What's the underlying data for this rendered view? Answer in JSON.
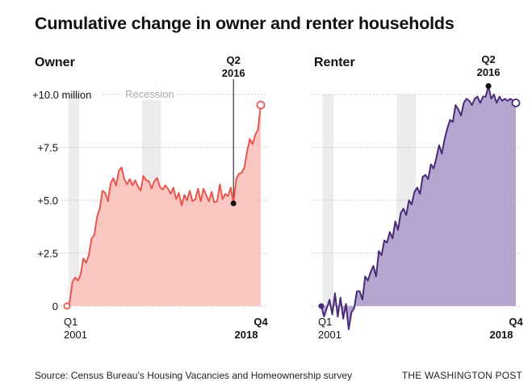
{
  "title": "Cumulative change in owner and renter households",
  "chart_data": [
    {
      "type": "area",
      "title": "Owner",
      "x_unit": "quarter",
      "x_start": "Q1 2001",
      "x_end": "Q4 2018",
      "x_tick_labels": [
        {
          "quarter": "Q1",
          "year": "2001"
        },
        {
          "quarter": "Q4",
          "year": "2018"
        }
      ],
      "y_ticks": [
        {
          "value": 0,
          "label": "0"
        },
        {
          "value": 2.5,
          "label": "+2.5"
        },
        {
          "value": 5,
          "label": "+5.0"
        },
        {
          "value": 7.5,
          "label": "+7.5"
        },
        {
          "value": 10,
          "label": "+10.0 million"
        }
      ],
      "ylim": [
        0,
        10
      ],
      "grid": true,
      "color": "#e8574e",
      "fill": "#f9c6c1",
      "recession_label": "Recession",
      "recessions": [
        [
          1,
          4
        ],
        [
          28,
          34
        ]
      ],
      "annotation": {
        "quarter": "Q2",
        "year": "2016",
        "index": 61,
        "value": 4.85
      },
      "end_value": 9.5,
      "values": [
        0.0,
        0.2,
        1.15,
        1.35,
        1.2,
        1.5,
        2.25,
        2.05,
        2.4,
        3.2,
        3.35,
        4.2,
        4.6,
        5.45,
        5.35,
        4.95,
        5.8,
        6.05,
        5.7,
        6.4,
        6.55,
        6.0,
        5.75,
        6.0,
        5.7,
        5.95,
        5.65,
        5.45,
        6.15,
        5.95,
        5.9,
        5.55,
        5.9,
        6.05,
        5.65,
        5.5,
        5.7,
        5.55,
        5.3,
        5.6,
        5.05,
        5.35,
        4.75,
        5.25,
        5.0,
        5.45,
        4.95,
        5.05,
        5.55,
        4.95,
        5.55,
        5.25,
        4.95,
        5.4,
        4.9,
        4.95,
        5.75,
        5.05,
        5.3,
        5.2,
        5.6,
        4.85,
        6.0,
        6.25,
        6.3,
        6.55,
        7.3,
        7.9,
        7.65,
        8.1,
        8.35,
        9.5
      ]
    },
    {
      "type": "area",
      "title": "Renter",
      "x_unit": "quarter",
      "x_start": "Q1 2001",
      "x_end": "Q4 2018",
      "x_tick_labels": [
        {
          "quarter": "Q1",
          "year": "2001"
        },
        {
          "quarter": "Q4",
          "year": "2018"
        }
      ],
      "ylim": [
        0,
        10
      ],
      "grid": true,
      "color": "#4b2a78",
      "fill": "#b4a6cf",
      "recessions": [
        [
          1,
          4
        ],
        [
          28,
          34
        ]
      ],
      "annotation": {
        "quarter": "Q2",
        "year": "2016",
        "index": 61,
        "value": 10.4
      },
      "end_value": 9.6,
      "values": [
        0.0,
        -0.5,
        -0.1,
        0.3,
        -0.4,
        0.6,
        -0.5,
        0.4,
        -0.6,
        0.1,
        -1.1,
        -0.3,
        -0.1,
        0.7,
        0.7,
        0.3,
        1.4,
        1.2,
        1.6,
        1.9,
        1.4,
        2.6,
        2.4,
        3.1,
        3.0,
        3.5,
        3.2,
        4.0,
        3.6,
        4.4,
        4.6,
        4.3,
        5.0,
        4.8,
        5.4,
        5.6,
        5.3,
        6.1,
        6.2,
        6.0,
        6.7,
        6.5,
        7.0,
        7.6,
        7.2,
        7.9,
        8.4,
        8.8,
        8.7,
        9.5,
        9.3,
        9.0,
        9.6,
        9.8,
        9.7,
        9.5,
        9.8,
        9.9,
        9.6,
        9.9,
        9.9,
        10.4,
        9.8,
        10.0,
        9.6,
        9.9,
        9.7,
        9.8,
        9.7,
        9.8,
        9.7,
        9.6
      ]
    }
  ],
  "source": "Source: Census Bureau’s Housing Vacancies and Homeownership survey",
  "credit": "THE WASHINGTON POST"
}
